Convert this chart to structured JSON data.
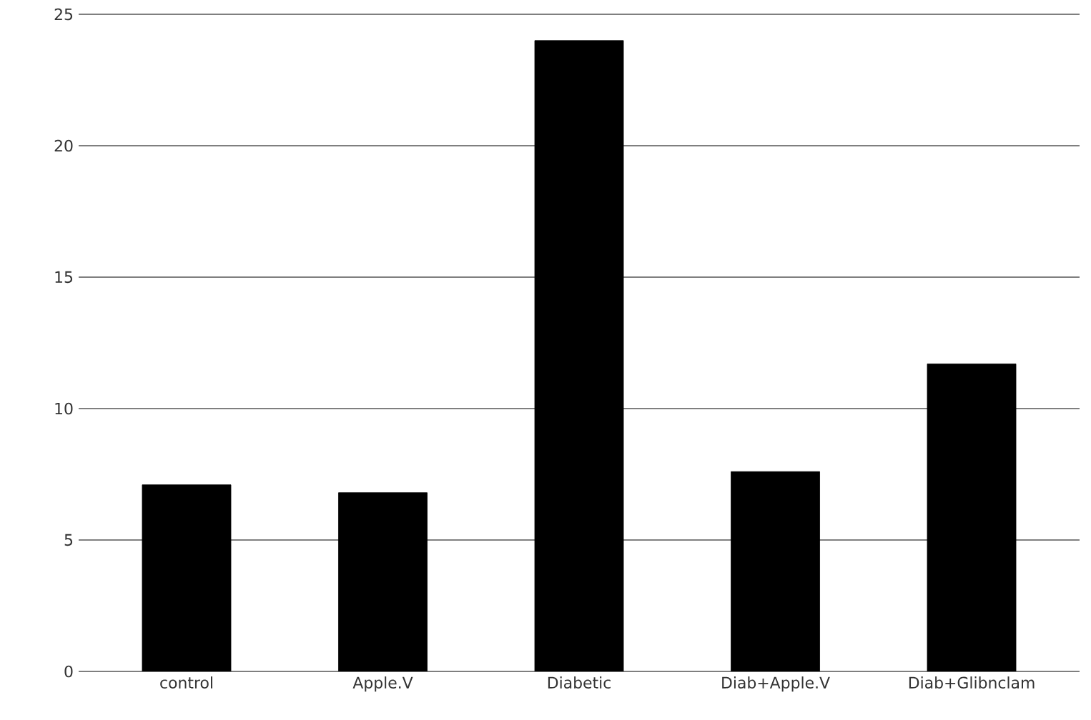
{
  "chart_data": {
    "type": "bar",
    "categories": [
      "control",
      "Apple.V",
      "Diabetic",
      "Diab+Apple.V",
      "Diab+Glibnclam"
    ],
    "values": [
      7.1,
      6.8,
      24.0,
      7.6,
      11.7
    ],
    "color": "#000000",
    "ylim": [
      0,
      25
    ],
    "yticks": [
      0,
      5,
      10,
      15,
      20,
      25
    ],
    "grid": "y"
  }
}
